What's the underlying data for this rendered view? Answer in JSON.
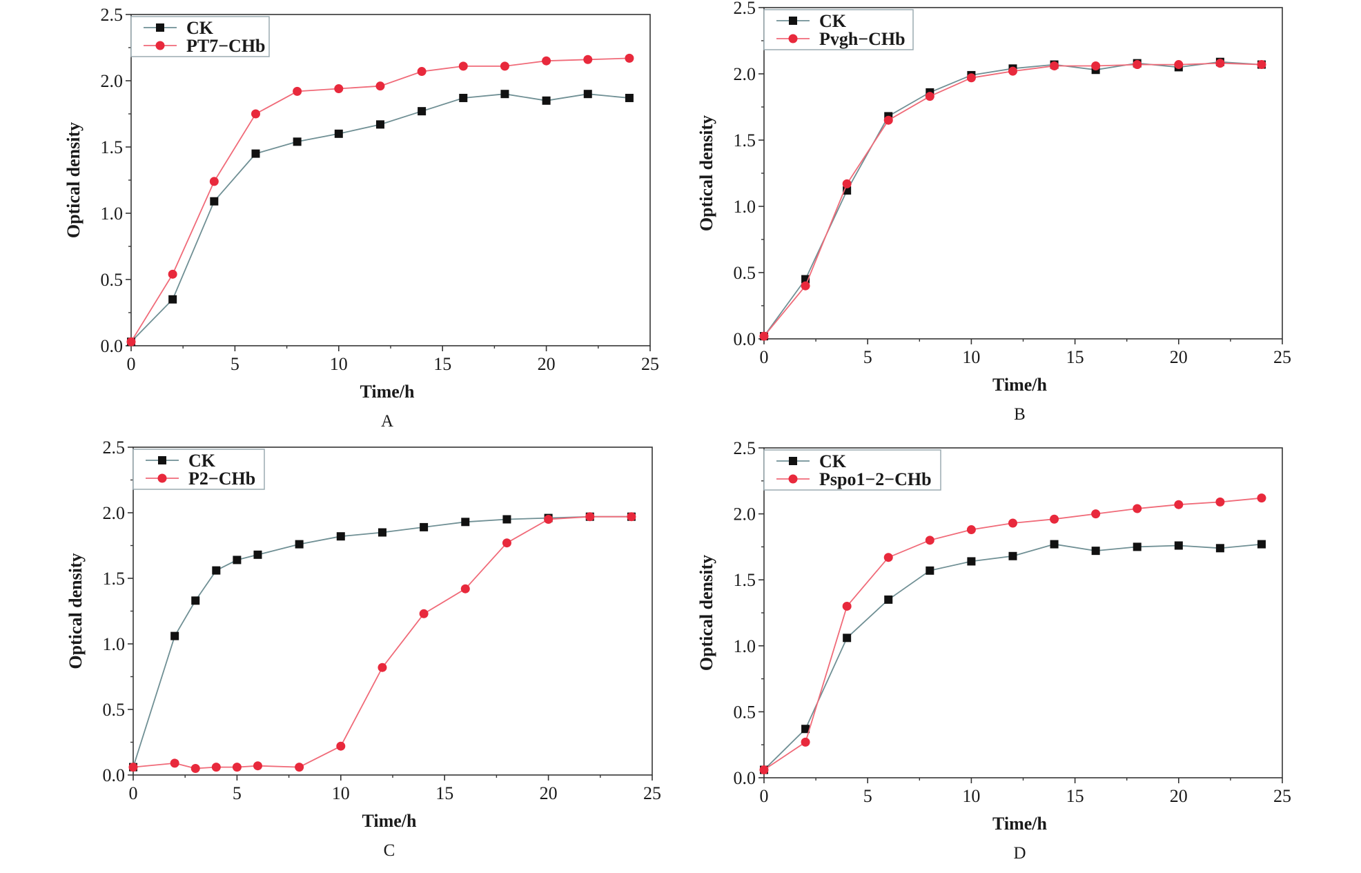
{
  "chart_data": [
    {
      "type": "line",
      "panel_label": "A",
      "xlabel": "Time/h",
      "ylabel": "Optical density",
      "xlim": [
        0,
        25
      ],
      "ylim": [
        0,
        2.5
      ],
      "xticks": [
        "0",
        "5",
        "10",
        "15",
        "20",
        "25"
      ],
      "yticks": [
        "0.0",
        "0.5",
        "1.0",
        "1.5",
        "2.0",
        "2.5"
      ],
      "legend_position": "top-left",
      "series": [
        {
          "name": "CK",
          "marker": "square",
          "color": "#111111",
          "line_color": "#6f8f94",
          "x": [
            0,
            2,
            4,
            6,
            8,
            10,
            12,
            14,
            16,
            18,
            20,
            22,
            24
          ],
          "values": [
            0.03,
            0.35,
            1.09,
            1.45,
            1.54,
            1.6,
            1.67,
            1.77,
            1.87,
            1.9,
            1.85,
            1.9,
            1.87
          ]
        },
        {
          "name": "PT7−CHb",
          "marker": "circle",
          "color": "#e8293c",
          "line_color": "#f06a78",
          "x": [
            0,
            2,
            4,
            6,
            8,
            10,
            12,
            14,
            16,
            18,
            20,
            22,
            24
          ],
          "values": [
            0.03,
            0.54,
            1.24,
            1.75,
            1.92,
            1.94,
            1.96,
            2.07,
            2.11,
            2.11,
            2.15,
            2.16,
            2.17
          ]
        }
      ]
    },
    {
      "type": "line",
      "panel_label": "B",
      "xlabel": "Time/h",
      "ylabel": "Optical density",
      "xlim": [
        0,
        25
      ],
      "ylim": [
        0,
        2.5
      ],
      "xticks": [
        "0",
        "5",
        "10",
        "15",
        "20",
        "25"
      ],
      "yticks": [
        "0.0",
        "0.5",
        "1.0",
        "1.5",
        "2.0",
        "2.5"
      ],
      "legend_position": "top-left",
      "series": [
        {
          "name": "CK",
          "marker": "square",
          "color": "#111111",
          "line_color": "#6f8f94",
          "x": [
            0,
            2,
            4,
            6,
            8,
            10,
            12,
            14,
            16,
            18,
            20,
            22,
            24
          ],
          "values": [
            0.02,
            0.45,
            1.12,
            1.68,
            1.86,
            1.99,
            2.04,
            2.07,
            2.03,
            2.08,
            2.05,
            2.09,
            2.07
          ]
        },
        {
          "name": "Pvgh−CHb",
          "marker": "circle",
          "color": "#e8293c",
          "line_color": "#f06a78",
          "x": [
            0,
            2,
            4,
            6,
            8,
            10,
            12,
            14,
            16,
            18,
            20,
            22,
            24
          ],
          "values": [
            0.02,
            0.4,
            1.17,
            1.65,
            1.83,
            1.97,
            2.02,
            2.06,
            2.06,
            2.07,
            2.07,
            2.08,
            2.07
          ]
        }
      ]
    },
    {
      "type": "line",
      "panel_label": "C",
      "xlabel": "Time/h",
      "ylabel": "Optical density",
      "xlim": [
        0,
        25
      ],
      "ylim": [
        0,
        2.5
      ],
      "xticks": [
        "0",
        "5",
        "10",
        "15",
        "20",
        "25"
      ],
      "yticks": [
        "0.0",
        "0.5",
        "1.0",
        "1.5",
        "2.0",
        "2.5"
      ],
      "legend_position": "top-left",
      "series": [
        {
          "name": "CK",
          "marker": "square",
          "color": "#111111",
          "line_color": "#6f8f94",
          "x": [
            0,
            2,
            3,
            4,
            5,
            6,
            8,
            10,
            12,
            14,
            16,
            18,
            20,
            22,
            24
          ],
          "values": [
            0.06,
            1.06,
            1.33,
            1.56,
            1.64,
            1.68,
            1.76,
            1.82,
            1.85,
            1.89,
            1.93,
            1.95,
            1.96,
            1.97,
            1.97
          ]
        },
        {
          "name": "P2−CHb",
          "marker": "circle",
          "color": "#e8293c",
          "line_color": "#f06a78",
          "x": [
            0,
            2,
            3,
            4,
            5,
            6,
            8,
            10,
            12,
            14,
            16,
            18,
            20,
            22,
            24
          ],
          "values": [
            0.06,
            0.09,
            0.05,
            0.06,
            0.06,
            0.07,
            0.06,
            0.22,
            0.82,
            1.23,
            1.42,
            1.77,
            1.95,
            1.97,
            1.97
          ]
        }
      ]
    },
    {
      "type": "line",
      "panel_label": "D",
      "xlabel": "Time/h",
      "ylabel": "Optical density",
      "xlim": [
        0,
        25
      ],
      "ylim": [
        0,
        2.5
      ],
      "xticks": [
        "0",
        "5",
        "10",
        "15",
        "20",
        "25"
      ],
      "yticks": [
        "0.0",
        "0.5",
        "1.0",
        "1.5",
        "2.0",
        "2.5"
      ],
      "legend_position": "top-left",
      "series": [
        {
          "name": "CK",
          "marker": "square",
          "color": "#111111",
          "line_color": "#6f8f94",
          "x": [
            0,
            2,
            4,
            6,
            8,
            10,
            12,
            14,
            16,
            18,
            20,
            22,
            24
          ],
          "values": [
            0.06,
            0.37,
            1.06,
            1.35,
            1.57,
            1.64,
            1.68,
            1.77,
            1.72,
            1.75,
            1.76,
            1.74,
            1.77
          ]
        },
        {
          "name": "Pspo1−2−CHb",
          "marker": "circle",
          "color": "#e8293c",
          "line_color": "#f06a78",
          "x": [
            0,
            2,
            4,
            6,
            8,
            10,
            12,
            14,
            16,
            18,
            20,
            22,
            24
          ],
          "values": [
            0.06,
            0.27,
            1.3,
            1.67,
            1.8,
            1.88,
            1.93,
            1.96,
            2.0,
            2.04,
            2.07,
            2.09,
            2.12
          ]
        }
      ]
    }
  ]
}
